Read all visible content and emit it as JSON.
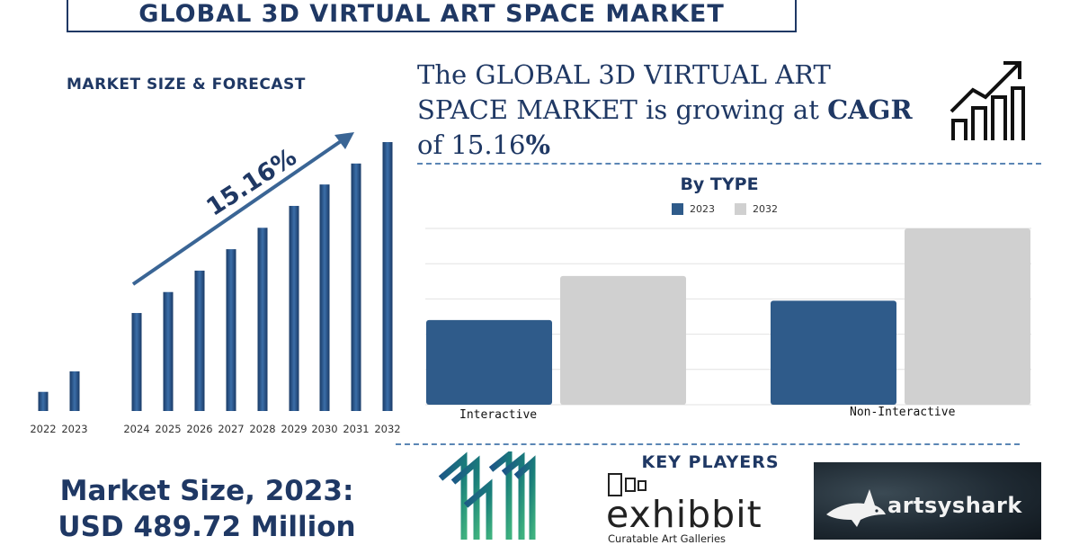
{
  "title": "GLOBAL 3D VIRTUAL ART SPACE MARKET",
  "left_panel": {
    "subtitle": "MARKET SIZE & FORECAST",
    "cagr_label": "15.16%"
  },
  "headline": {
    "line1": "The GLOBAL  3D VIRTUAL ART",
    "line2_regular": "SPACE MARKET is growing at ",
    "line2_bold": "CAGR",
    "line3_regular": "of 15.16",
    "line3_bold": "%"
  },
  "market_size": {
    "line1": "Market Size, 2023:",
    "line2": "USD 489.72 Million"
  },
  "key_players": {
    "heading": "KEY PLAYERS",
    "exhibbit_name": "exhibbit",
    "exhibbit_tagline": "Curatable Art Galleries",
    "artsyshark_name": "artsyshark"
  },
  "colors": {
    "primary": "#1f3864",
    "bar_dark": "#2c5282",
    "bar_2023": "#2f5b8a",
    "bar_2032": "#d0d0d0",
    "arrow": "#3a6595",
    "dash": "#5b86b5"
  },
  "icons": [
    "growth-chart-icon",
    "hexagon-logo-icon",
    "shark-icon",
    "exhibbit-squares-icon"
  ],
  "chart_data": [
    {
      "type": "bar",
      "categories": [
        "2022",
        "2023",
        "2024",
        "2025",
        "2026",
        "2027",
        "2028",
        "2029",
        "2030",
        "2031",
        "2032"
      ],
      "values": [
        0.42,
        0.87,
        2.15,
        2.61,
        3.08,
        3.55,
        4.02,
        4.5,
        4.97,
        5.43,
        5.9
      ],
      "annotation": "15.16%",
      "grid": false
    },
    {
      "type": "bar",
      "title": "By TYPE",
      "categories": [
        "Interactive",
        "Non-Interactive"
      ],
      "series": [
        {
          "name": "2023",
          "values": [
            0.48,
            0.59
          ]
        },
        {
          "name": "2032",
          "values": [
            0.73,
            1.0
          ]
        }
      ],
      "ylim": [
        0,
        1.0
      ],
      "grid": true,
      "legend": "top-center"
    }
  ]
}
